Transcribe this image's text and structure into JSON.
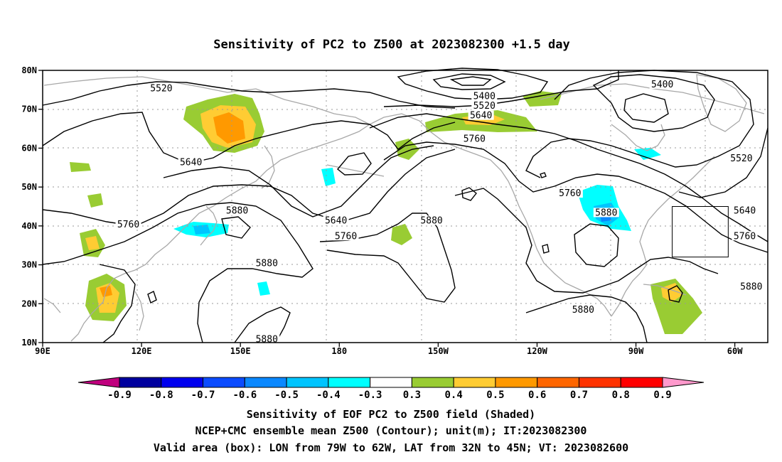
{
  "title": "Sensitivity of PC2 to Z500 at 2023082300 +1.5 day",
  "map": {
    "lat_ticks": [
      {
        "lat": 80,
        "label": "80N"
      },
      {
        "lat": 70,
        "label": "70N"
      },
      {
        "lat": 60,
        "label": "60N"
      },
      {
        "lat": 50,
        "label": "50N"
      },
      {
        "lat": 40,
        "label": "40N"
      },
      {
        "lat": 30,
        "label": "30N"
      },
      {
        "lat": 20,
        "label": "20N"
      },
      {
        "lat": 10,
        "label": "10N"
      }
    ],
    "lon_ticks": [
      {
        "lon": 90,
        "label": "90E"
      },
      {
        "lon": 120,
        "label": "120E"
      },
      {
        "lon": 150,
        "label": "150E"
      },
      {
        "lon": 180,
        "label": "180"
      },
      {
        "lon": 210,
        "label": "150W"
      },
      {
        "lon": 240,
        "label": "120W"
      },
      {
        "lon": 270,
        "label": "90W"
      },
      {
        "lon": 300,
        "label": "60W"
      }
    ],
    "contour_labels": [
      {
        "text": "5520",
        "lon": 126,
        "lat": 75
      },
      {
        "text": "5640",
        "lon": 135,
        "lat": 56
      },
      {
        "text": "5760",
        "lon": 116,
        "lat": 40
      },
      {
        "text": "5880",
        "lon": 149,
        "lat": 43.5
      },
      {
        "text": "5640",
        "lon": 179,
        "lat": 41
      },
      {
        "text": "5760",
        "lon": 182,
        "lat": 37
      },
      {
        "text": "5880",
        "lon": 158,
        "lat": 30
      },
      {
        "text": "5880",
        "lon": 158,
        "lat": 10.5
      },
      {
        "text": "5400",
        "lon": 224,
        "lat": 73
      },
      {
        "text": "5520",
        "lon": 224,
        "lat": 70.5
      },
      {
        "text": "5640",
        "lon": 223,
        "lat": 68
      },
      {
        "text": "5760",
        "lon": 221,
        "lat": 62
      },
      {
        "text": "5880",
        "lon": 208,
        "lat": 41
      },
      {
        "text": "5760",
        "lon": 250,
        "lat": 48
      },
      {
        "text": "5880",
        "lon": 261,
        "lat": 43
      },
      {
        "text": "5400",
        "lon": 278,
        "lat": 76
      },
      {
        "text": "5520",
        "lon": 302,
        "lat": 57
      },
      {
        "text": "5640",
        "lon": 303,
        "lat": 43.5
      },
      {
        "text": "5760",
        "lon": 303,
        "lat": 37
      },
      {
        "text": "5880",
        "lon": 305,
        "lat": 24
      },
      {
        "text": "5880",
        "lon": 254,
        "lat": 18
      }
    ],
    "valid_box": {
      "lon_min": 281,
      "lon_max": 298,
      "lat_min": 32,
      "lat_max": 45
    }
  },
  "colorbar": {
    "labels": [
      "-0.9",
      "-0.8",
      "-0.7",
      "-0.6",
      "-0.5",
      "-0.4",
      "-0.3",
      "0.3",
      "0.4",
      "0.5",
      "0.6",
      "0.7",
      "0.8",
      "0.9"
    ],
    "colors": [
      "#00009e",
      "#0000ee",
      "#0b4bff",
      "#0a88ff",
      "#00c4ff",
      "#00ffff",
      "#ffffff",
      "#99cc33",
      "#ffcc33",
      "#ff9900",
      "#ff6600",
      "#ff3300",
      "#ff0000"
    ],
    "low_color": "#c0007e",
    "high_color": "#ff99cc"
  },
  "captions": [
    "Sensitivity of EOF PC2 to Z500 field (Shaded)",
    "NCEP+CMC ensemble mean Z500 (Contour); unit(m); IT:2023082300",
    "Valid area (box): LON from 79W to 62W, LAT from 32N to 45N; VT: 2023082600"
  ]
}
